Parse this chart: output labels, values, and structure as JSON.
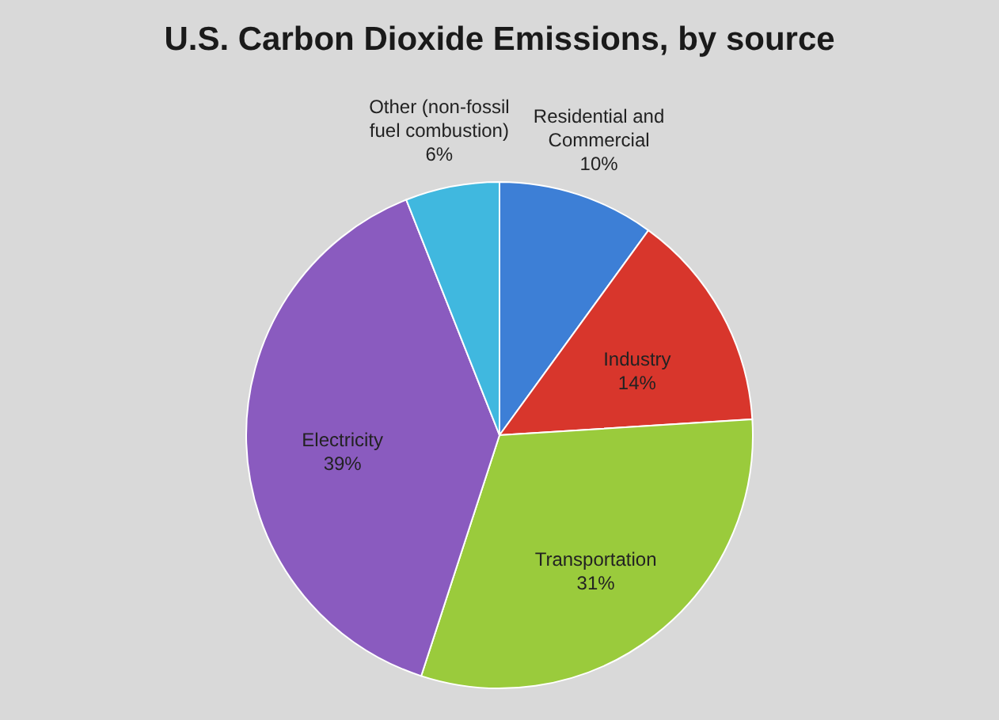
{
  "chart_data": {
    "type": "pie",
    "title": "U.S. Carbon Dioxide Emissions, by source",
    "categories": [
      "Residential and Commercial",
      "Industry",
      "Transportation",
      "Electricity",
      "Other (non-fossil fuel combustion)"
    ],
    "values": [
      10,
      14,
      31,
      39,
      6
    ],
    "colors": [
      "#3d7fd6",
      "#d8362c",
      "#9acb3c",
      "#8a5bbf",
      "#40b8df"
    ],
    "value_labels": [
      "10%",
      "14%",
      "31%",
      "39%",
      "6%"
    ]
  }
}
